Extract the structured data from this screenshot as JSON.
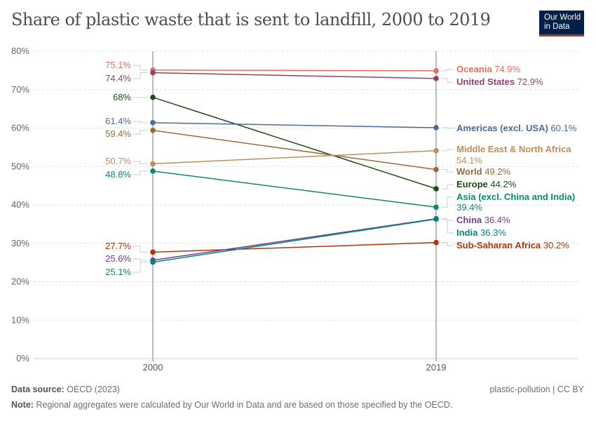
{
  "title": "Share of plastic waste that is sent to landfill, 2000 to 2019",
  "logo": {
    "line1": "Our World",
    "line2": "in Data"
  },
  "chart_data": {
    "type": "line",
    "title": "Share of plastic waste that is sent to landfill, 2000 to 2019",
    "x": [
      "2000",
      "2019"
    ],
    "ylim": [
      0,
      80
    ],
    "yticks": [
      "0%",
      "10%",
      "20%",
      "30%",
      "40%",
      "50%",
      "60%",
      "70%",
      "80%"
    ],
    "grid": true,
    "series": [
      {
        "name": "Oceania",
        "values": [
          75.1,
          74.9
        ],
        "labels": [
          "75.1%",
          "74.9%"
        ],
        "color": "#e56e5a"
      },
      {
        "name": "United States",
        "values": [
          74.4,
          72.9
        ],
        "labels": [
          "74.4%",
          "72.9%"
        ],
        "color": "#8c4569"
      },
      {
        "name": "Europe",
        "values": [
          68,
          44.2
        ],
        "labels": [
          "68%",
          "44.2%"
        ],
        "color": "#1e4a14"
      },
      {
        "name": "Americas (excl. USA)",
        "values": [
          61.4,
          60.1
        ],
        "labels": [
          "61.4%",
          "60.1%"
        ],
        "color": "#4c6a9c"
      },
      {
        "name": "World",
        "values": [
          59.4,
          49.2
        ],
        "labels": [
          "59.4%",
          "49.2%"
        ],
        "color": "#9a6a3a"
      },
      {
        "name": "Middle East & North Africa",
        "values": [
          50.7,
          54.1
        ],
        "labels": [
          "50.7%",
          "54.1%"
        ],
        "color": "#bc8e5a"
      },
      {
        "name": "Asia (excl. China and India)",
        "values": [
          48.8,
          39.4
        ],
        "labels": [
          "48.8%",
          "39.4%"
        ],
        "color": "#0e8a68"
      },
      {
        "name": "Sub-Saharan Africa",
        "values": [
          27.7,
          30.2
        ],
        "labels": [
          "27.7%",
          "30.2%"
        ],
        "color": "#b13507"
      },
      {
        "name": "China",
        "values": [
          25.6,
          36.4
        ],
        "labels": [
          "25.6%",
          "36.4%"
        ],
        "color": "#6d3e91"
      },
      {
        "name": "India",
        "values": [
          25.1,
          36.3
        ],
        "labels": [
          "25.1%",
          "36.3%"
        ],
        "color": "#00847e"
      }
    ]
  },
  "footer": {
    "source_label": "Data source:",
    "source": "OECD (2023)",
    "note_label": "Note:",
    "note": "Regional aggregates were calculated by Our World in Data and are based on those specified by the OECD.",
    "right": "plastic-pollution | CC BY"
  }
}
